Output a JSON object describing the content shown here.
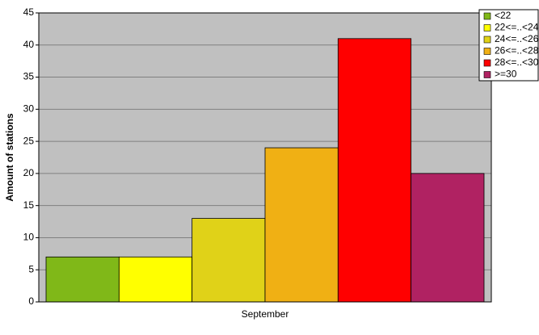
{
  "chart_data": {
    "type": "bar",
    "y_label": "Amount of stations",
    "categories": [
      "September"
    ],
    "series": [
      {
        "name": "<22",
        "color": "#80b818",
        "values": [
          7
        ]
      },
      {
        "name": "22<=..<24",
        "color": "#ffff00",
        "values": [
          7
        ]
      },
      {
        "name": "24<=..<26",
        "color": "#e0d218",
        "values": [
          13
        ]
      },
      {
        "name": "26<=..<28",
        "color": "#f0b014",
        "values": [
          24
        ]
      },
      {
        "name": "28<=..<30",
        "color": "#ff0000",
        "values": [
          41
        ]
      },
      {
        "name": ">=30",
        "color": "#b02262",
        "values": [
          20
        ]
      }
    ],
    "ylim": [
      0,
      45
    ],
    "yticks": [
      0,
      5,
      10,
      15,
      20,
      25,
      30,
      35,
      40,
      45
    ],
    "grid": true,
    "legend": "top-right"
  }
}
